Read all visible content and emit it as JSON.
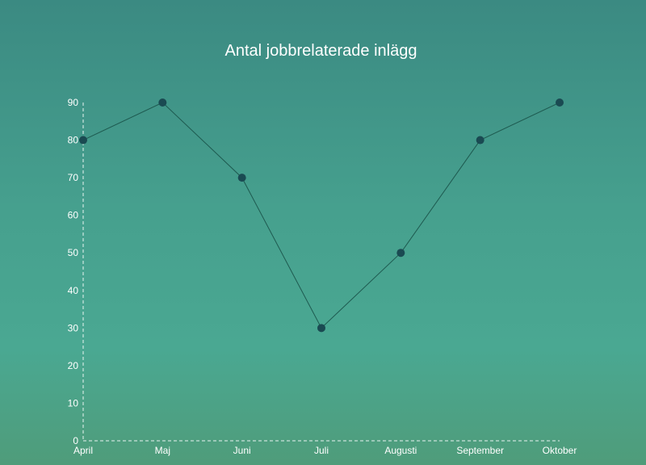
{
  "chart_data": {
    "type": "line",
    "title": "Antal jobbrelaterade inlägg",
    "xlabel": "",
    "ylabel": "",
    "categories": [
      "April",
      "Maj",
      "Juni",
      "Juli",
      "Augusti",
      "September",
      "Oktober"
    ],
    "values": [
      80,
      90,
      70,
      30,
      50,
      80,
      90
    ],
    "ylim": [
      0,
      90
    ],
    "yticks": [
      0,
      10,
      20,
      30,
      40,
      50,
      60,
      70,
      80,
      90
    ],
    "grid": false,
    "colors": {
      "line": "#1e5a50",
      "marker": "#1a4a52",
      "axis": "#e8f4f0",
      "text": "#ffffff"
    }
  }
}
